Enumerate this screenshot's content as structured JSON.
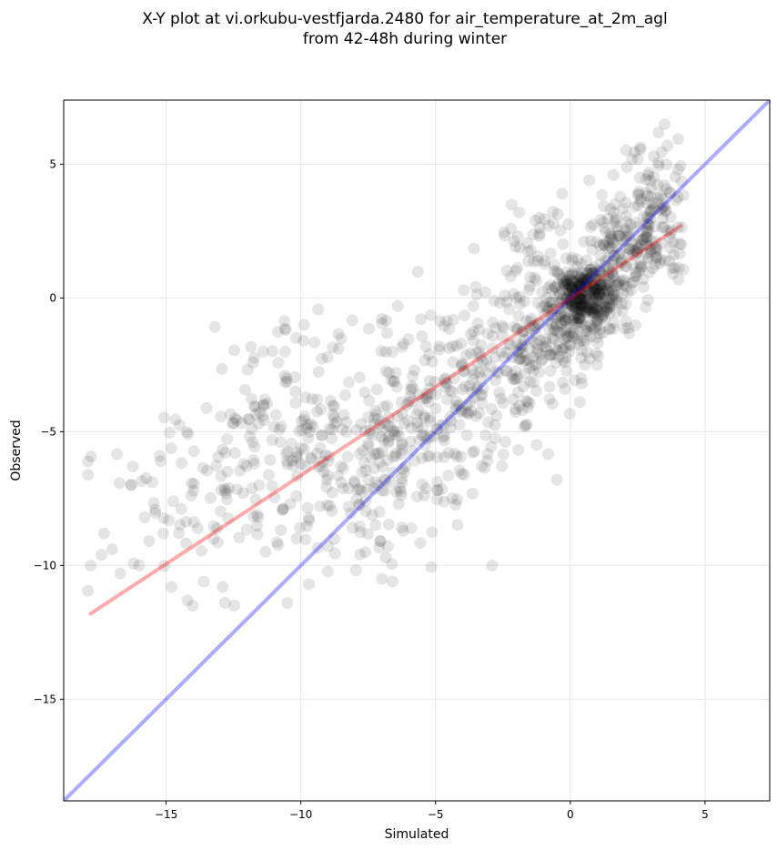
{
  "chart_data": {
    "type": "scatter",
    "title_line1": "X-Y plot at vi.orkubu-vestfjarda.2480 for air_temperature_at_2m_agl",
    "title_line2": "from 42-48h during winter",
    "xlabel": "Simulated",
    "ylabel": "Observed",
    "xlim": [
      -18.8,
      7.4
    ],
    "ylim": [
      -18.8,
      7.4
    ],
    "x_ticks": [
      -15,
      -10,
      -5,
      0,
      5
    ],
    "y_ticks": [
      -15,
      -10,
      -5,
      0,
      5
    ],
    "x_tick_labels": [
      "−15",
      "−10",
      "−5",
      "0",
      "5"
    ],
    "y_tick_labels": [
      "−15",
      "−10",
      "−5",
      "0",
      "5"
    ],
    "grid": true,
    "point_color": "#000000",
    "point_alpha": 0.1,
    "lines": [
      {
        "color": "#0000ff",
        "alpha": 0.33,
        "x": [
          -18.8,
          7.4
        ],
        "y": [
          -18.8,
          7.4
        ]
      },
      {
        "color": "#ff0000",
        "alpha": 0.33,
        "x": [
          -17.8,
          4.1
        ],
        "y": [
          -11.8,
          2.7
        ]
      }
    ],
    "clusters": [
      {
        "cx": 0.6,
        "cy": 0.1,
        "sx": 0.6,
        "sy": 0.6,
        "n": 260
      },
      {
        "cx": 0.2,
        "cy": -0.6,
        "sx": 1.0,
        "sy": 1.1,
        "n": 160
      },
      {
        "cx": 2.2,
        "cy": 1.9,
        "sx": 0.9,
        "sy": 1.0,
        "n": 140
      },
      {
        "cx": 3.2,
        "cy": 3.4,
        "sx": 0.6,
        "sy": 1.2,
        "n": 90
      },
      {
        "cx": -1.8,
        "cy": -1.6,
        "sx": 1.3,
        "sy": 1.3,
        "n": 160
      },
      {
        "cx": -5.0,
        "cy": -4.3,
        "sx": 1.6,
        "sy": 1.6,
        "n": 210
      },
      {
        "cx": -8.3,
        "cy": -6.6,
        "sx": 1.8,
        "sy": 1.7,
        "n": 160
      },
      {
        "cx": -10.6,
        "cy": -4.2,
        "sx": 1.6,
        "sy": 1.6,
        "n": 90
      },
      {
        "cx": -13.5,
        "cy": -7.4,
        "sx": 2.1,
        "sy": 1.8,
        "n": 90
      },
      {
        "cx": -1.5,
        "cy": 2.3,
        "sx": 1.0,
        "sy": 0.7,
        "n": 25
      }
    ],
    "points": [
      [
        -17.8,
        -10.0
      ],
      [
        -17.4,
        -9.6
      ],
      [
        -17.3,
        -8.8
      ],
      [
        -17.0,
        -9.4
      ],
      [
        -16.7,
        -10.3
      ],
      [
        -16.3,
        -7.0
      ],
      [
        -16.0,
        -10.0
      ],
      [
        -15.8,
        -8.2
      ],
      [
        -15.2,
        -6.1
      ],
      [
        -15.1,
        -8.8
      ],
      [
        -14.8,
        -10.8
      ],
      [
        -14.2,
        -11.3
      ],
      [
        -13.6,
        -10.6
      ],
      [
        -12.9,
        -10.8
      ],
      [
        -12.5,
        -4.7
      ],
      [
        -11.4,
        -2.0
      ],
      [
        -10.5,
        -11.4
      ],
      [
        -9.9,
        -1.6
      ],
      [
        -9.7,
        -10.7
      ],
      [
        -8.6,
        -1.9
      ],
      [
        -7.6,
        -9.5
      ],
      [
        -6.6,
        -10.6
      ],
      [
        -6.4,
        -0.3
      ],
      [
        -6.2,
        -8.7
      ],
      [
        -5.9,
        -8.6
      ],
      [
        -3.6,
        -0.3
      ],
      [
        -2.9,
        -10.0
      ],
      [
        -2.2,
        2.6
      ],
      [
        -1.3,
        2.9
      ],
      [
        -0.8,
        2.7
      ],
      [
        -0.5,
        -6.8
      ],
      [
        -0.3,
        3.9
      ],
      [
        0.7,
        4.4
      ],
      [
        1.6,
        4.6
      ],
      [
        2.1,
        4.9
      ],
      [
        2.3,
        5.2
      ],
      [
        3.1,
        5.3
      ],
      [
        3.6,
        5.7
      ],
      [
        3.5,
        6.5
      ],
      [
        3.5,
        1.4
      ],
      [
        2.7,
        0.7
      ],
      [
        1.0,
        -2.5
      ],
      [
        0.4,
        -3.0
      ],
      [
        -0.2,
        -3.4
      ],
      [
        4.0,
        4.8
      ]
    ],
    "seed": 7
  }
}
